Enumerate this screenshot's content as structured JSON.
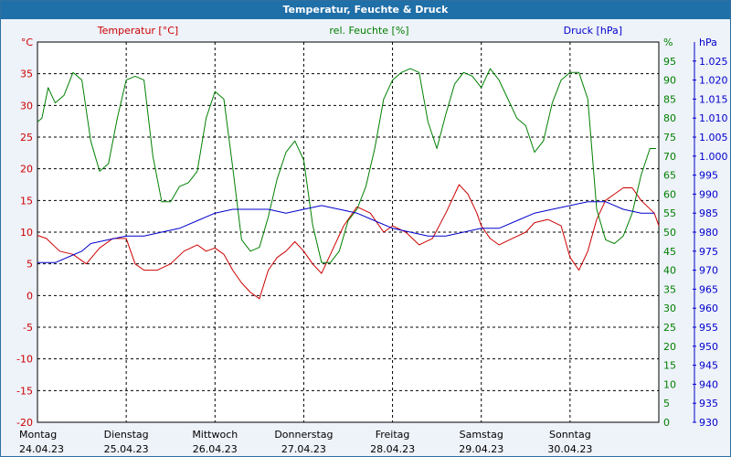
{
  "title": "Temperatur, Feuchte & Druck",
  "colors": {
    "temperature": "#cc0000",
    "humidity": "#008000",
    "pressure": "#0000cc",
    "background": "#eef2f9",
    "titlebar": "#1f6fa8"
  },
  "chart_data": {
    "type": "line",
    "title": "Temperatur, Feuchte & Druck",
    "grid": true,
    "x_categories": [
      {
        "day": "Montag",
        "date": "24.04.23"
      },
      {
        "day": "Dienstag",
        "date": "25.04.23"
      },
      {
        "day": "Mittwoch",
        "date": "26.04.23"
      },
      {
        "day": "Donnerstag",
        "date": "27.04.23"
      },
      {
        "day": "Freitag",
        "date": "28.04.23"
      },
      {
        "day": "Samstag",
        "date": "29.04.23"
      },
      {
        "day": "Sonntag",
        "date": "30.04.23"
      }
    ],
    "x_range_days": [
      0,
      7
    ],
    "axes": {
      "temperature": {
        "unit": "°C",
        "label": "Temperatur [°C]",
        "range": [
          -20,
          40
        ],
        "ticks": [
          -20,
          -15,
          -10,
          -5,
          0,
          5,
          10,
          15,
          20,
          25,
          30,
          35
        ]
      },
      "humidity": {
        "unit": "%",
        "label": "rel. Feuchte [%]",
        "range": [
          0,
          100
        ],
        "ticks": [
          0,
          5,
          10,
          15,
          20,
          25,
          30,
          35,
          40,
          45,
          50,
          55,
          60,
          65,
          70,
          75,
          80,
          85,
          90,
          95
        ]
      },
      "pressure": {
        "unit": "hPa",
        "label": "Druck [hPa]",
        "range": [
          930,
          1030
        ],
        "ticks": [
          "930",
          "935",
          "940",
          "945",
          "950",
          "955",
          "960",
          "965",
          "970",
          "975",
          "980",
          "985",
          "990",
          "995",
          "1.000",
          "1.005",
          "1.010",
          "1.015",
          "1.020",
          "1.025"
        ]
      }
    },
    "series": [
      {
        "name": "Temperatur [°C]",
        "axis": "temperature",
        "x": [
          0,
          0.1,
          0.25,
          0.4,
          0.55,
          0.7,
          0.85,
          1.0,
          1.1,
          1.2,
          1.35,
          1.5,
          1.65,
          1.8,
          1.9,
          2.0,
          2.1,
          2.2,
          2.3,
          2.4,
          2.5,
          2.6,
          2.7,
          2.8,
          2.9,
          3.0,
          3.1,
          3.2,
          3.3,
          3.45,
          3.6,
          3.75,
          3.9,
          4.0,
          4.15,
          4.3,
          4.45,
          4.6,
          4.75,
          4.85,
          4.95,
          5.0,
          5.1,
          5.2,
          5.35,
          5.5,
          5.6,
          5.75,
          5.9,
          6.0,
          6.1,
          6.2,
          6.3,
          6.4,
          6.5,
          6.6,
          6.7,
          6.8,
          6.95,
          7.0
        ],
        "y": [
          9.5,
          9.0,
          7.0,
          6.5,
          5.0,
          7.5,
          9.0,
          9.0,
          5.0,
          4.0,
          4.0,
          5.0,
          7.0,
          8.0,
          7.0,
          7.5,
          6.5,
          4.0,
          2.0,
          0.5,
          -0.5,
          4.0,
          6.0,
          7.0,
          8.5,
          7.0,
          5.0,
          3.5,
          6.5,
          11.0,
          14.0,
          13.0,
          10.0,
          11.0,
          10.0,
          8.0,
          9.0,
          13.0,
          17.5,
          16.0,
          13.0,
          11.0,
          9.0,
          8.0,
          9.0,
          10.0,
          11.5,
          12.0,
          11.0,
          6.0,
          4.0,
          7.0,
          12.0,
          15.0,
          16.0,
          17.0,
          17.0,
          15.0,
          13.0,
          11.0
        ]
      },
      {
        "name": "rel. Feuchte [%]",
        "axis": "humidity",
        "x": [
          0,
          0.05,
          0.12,
          0.2,
          0.3,
          0.4,
          0.5,
          0.6,
          0.7,
          0.8,
          0.9,
          1.0,
          1.1,
          1.2,
          1.3,
          1.4,
          1.5,
          1.6,
          1.7,
          1.8,
          1.9,
          2.0,
          2.1,
          2.2,
          2.3,
          2.4,
          2.5,
          2.6,
          2.7,
          2.8,
          2.9,
          3.0,
          3.1,
          3.2,
          3.3,
          3.4,
          3.5,
          3.6,
          3.7,
          3.8,
          3.9,
          4.0,
          4.1,
          4.2,
          4.3,
          4.4,
          4.5,
          4.6,
          4.7,
          4.8,
          4.9,
          5.0,
          5.1,
          5.2,
          5.3,
          5.4,
          5.5,
          5.6,
          5.7,
          5.8,
          5.9,
          6.0,
          6.1,
          6.2,
          6.3,
          6.4,
          6.5,
          6.6,
          6.7,
          6.8,
          6.9,
          6.97
        ],
        "y": [
          79,
          80,
          88,
          84,
          86,
          92,
          90,
          74,
          66,
          68,
          80,
          90,
          91,
          90,
          70,
          58,
          58,
          62,
          63,
          66,
          80,
          87,
          85,
          67,
          48,
          45,
          46,
          54,
          64,
          71,
          74,
          69,
          52,
          42,
          42,
          45,
          53,
          56,
          62,
          72,
          85,
          90,
          92,
          93,
          92,
          79,
          72,
          81,
          89,
          92,
          91,
          88,
          93,
          90,
          85,
          80,
          78,
          71,
          74,
          84,
          90,
          92,
          92,
          85,
          56,
          48,
          47,
          49,
          55,
          65,
          72,
          72
        ]
      },
      {
        "name": "Druck [hPa]",
        "axis": "pressure",
        "x": [
          0,
          0.2,
          0.4,
          0.5,
          0.6,
          0.8,
          1.0,
          1.2,
          1.4,
          1.6,
          1.8,
          2.0,
          2.2,
          2.4,
          2.6,
          2.8,
          3.0,
          3.2,
          3.4,
          3.6,
          3.8,
          4.0,
          4.2,
          4.4,
          4.6,
          4.8,
          5.0,
          5.2,
          5.4,
          5.6,
          5.8,
          6.0,
          6.2,
          6.4,
          6.6,
          6.8,
          6.95
        ],
        "y": [
          972,
          972,
          974,
          975,
          977,
          978,
          979,
          979,
          980,
          981,
          983,
          985,
          986,
          986,
          986,
          985,
          986,
          987,
          986,
          985,
          983,
          981,
          980,
          979,
          979,
          980,
          981,
          981,
          983,
          985,
          986,
          987,
          988,
          988,
          986,
          985,
          985
        ]
      }
    ]
  }
}
